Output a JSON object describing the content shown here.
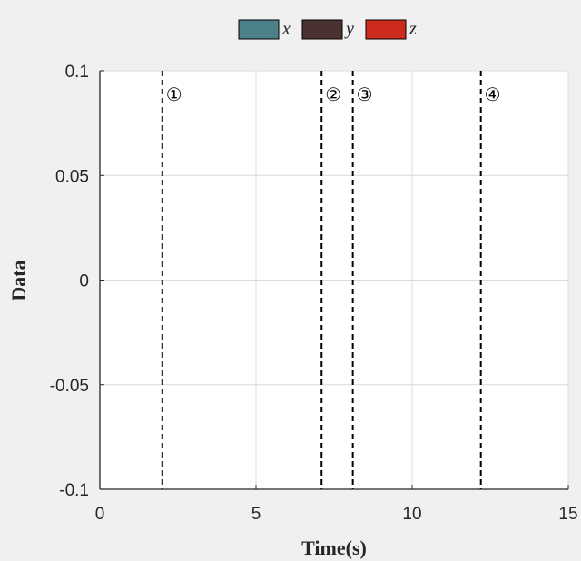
{
  "chart_data": {
    "type": "line",
    "title": "",
    "xlabel": "Time(s)",
    "ylabel": "Data",
    "xlim": [
      0,
      15
    ],
    "ylim": [
      -0.1,
      0.1
    ],
    "xticks": [
      0,
      5,
      10,
      15
    ],
    "xtick_labels": [
      "0",
      "5",
      "10",
      "15"
    ],
    "yticks": [
      0.1,
      0.05,
      0,
      -0.05,
      -0.1
    ],
    "ytick_labels": [
      "0.1",
      "0.05",
      "0",
      "-0.05",
      "-0.1"
    ],
    "grid": true,
    "legend_position": "top-center",
    "series": [
      {
        "name": "x",
        "color": "#4d8189",
        "values": []
      },
      {
        "name": "y",
        "color": "#4a3232",
        "values": []
      },
      {
        "name": "z",
        "color": "#cc2b1d",
        "values": []
      }
    ],
    "event_lines": [
      {
        "x": 2.0,
        "label": "①"
      },
      {
        "x": 7.1,
        "label": "②"
      },
      {
        "x": 8.1,
        "label": "③"
      },
      {
        "x": 12.2,
        "label": "④"
      }
    ]
  }
}
